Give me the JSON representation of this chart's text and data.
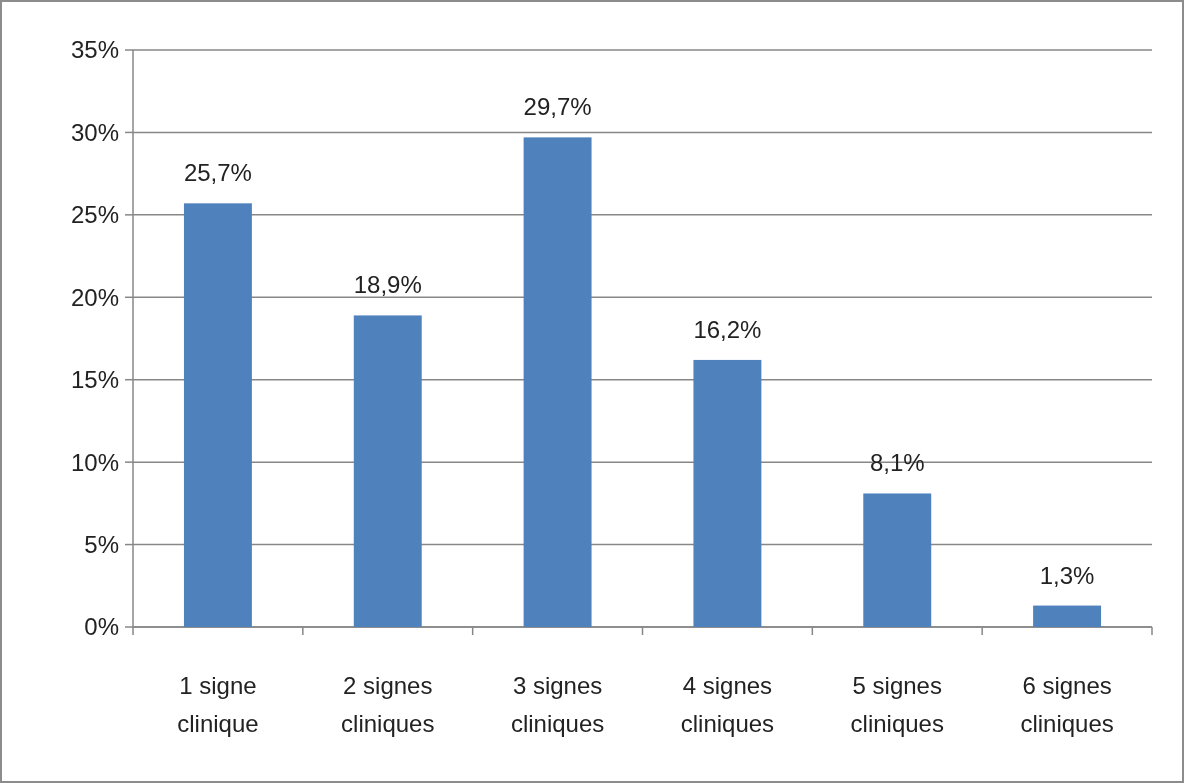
{
  "chart_data": {
    "type": "bar",
    "categories": [
      "1 signe clinique",
      "2 signes cliniques",
      "3 signes cliniques",
      "4 signes cliniques",
      "5 signes cliniques",
      "6 signes cliniques"
    ],
    "values": [
      25.7,
      18.9,
      29.7,
      16.2,
      8.1,
      1.3
    ],
    "value_labels": [
      "25,7%",
      "18,9%",
      "29,7%",
      "16,2%",
      "8,1%",
      "1,3%"
    ],
    "color": "#4f81bd",
    "ylim": [
      0,
      35
    ],
    "yticks": [
      {
        "value": 0,
        "label": "0%"
      },
      {
        "value": 5,
        "label": "5%"
      },
      {
        "value": 10,
        "label": "10%"
      },
      {
        "value": 15,
        "label": "15%"
      },
      {
        "value": 20,
        "label": "20%"
      },
      {
        "value": 25,
        "label": "25%"
      },
      {
        "value": 30,
        "label": "30%"
      },
      {
        "value": 35,
        "label": "35%"
      }
    ],
    "grid": "y"
  }
}
